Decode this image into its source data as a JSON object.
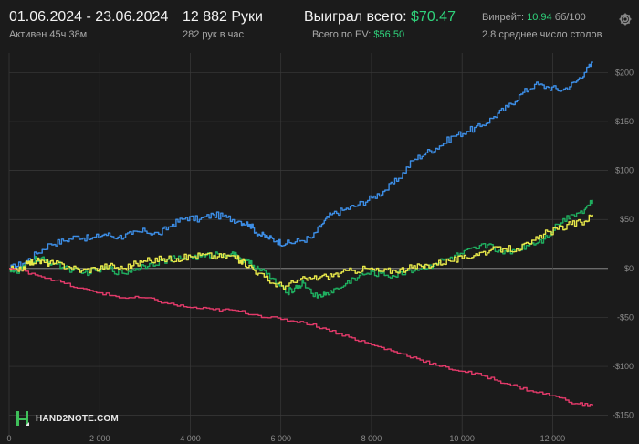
{
  "header": {
    "date_range": "01.06.2024 - 23.06.2024",
    "active_time": "Активен 45ч 38м",
    "hands": "12 882 Руки",
    "hands_per_hour": "282 рук в час",
    "won_label": "Выиграл всего:",
    "won_value": "$70.47",
    "ev_label": "Всего по EV:",
    "ev_value": "$56.50",
    "winrate_label": "Винрейт:",
    "winrate_value": "10.94",
    "winrate_unit": "бб/100",
    "avg_tables": "2.8 среднее число столов"
  },
  "icons": {
    "settings": "gear-icon",
    "logo": "hand2note-logo"
  },
  "logo": {
    "text": "HAND2NOTE.COM"
  },
  "colors": {
    "background": "#1b1b1b",
    "won": "#2fd27b",
    "total_line": "#3d8ee6",
    "net_won_line": "#1fae5f",
    "ev_line": "#e8e84a",
    "showdown_line": "#e33a6a",
    "grid": "#3a3a3a"
  },
  "chart_data": {
    "type": "line",
    "x_ticks": [
      0,
      2000,
      4000,
      6000,
      8000,
      10000,
      12000
    ],
    "x_tick_labels": [
      "0",
      "2 000",
      "4 000",
      "6 000",
      "8 000",
      "10 000",
      "12 000"
    ],
    "y_ticks": [
      -150,
      -100,
      -50,
      0,
      50,
      100,
      150,
      200
    ],
    "y_tick_labels": [
      "-$150",
      "-$100",
      "-$50",
      "$0",
      "$50",
      "$100",
      "$150",
      "$200"
    ],
    "xlim": [
      0,
      13100
    ],
    "ylim": [
      -155,
      220
    ],
    "grid": true,
    "series": [
      {
        "color": "#3d8ee6",
        "x": [
          0,
          300,
          600,
          900,
          1200,
          1500,
          1800,
          2100,
          2400,
          2700,
          3000,
          3300,
          3600,
          3900,
          4200,
          4500,
          4800,
          5100,
          5300,
          5500,
          5700,
          5900,
          6100,
          6400,
          6700,
          6900,
          7100,
          7400,
          7700,
          8000,
          8300,
          8600,
          8900,
          9200,
          9500,
          9800,
          10100,
          10400,
          10700,
          11000,
          11300,
          11600,
          11900,
          12200,
          12500,
          12700,
          12880
        ],
        "y": [
          0,
          5,
          15,
          25,
          28,
          33,
          30,
          35,
          32,
          35,
          38,
          35,
          45,
          52,
          50,
          55,
          52,
          48,
          45,
          35,
          32,
          28,
          25,
          28,
          32,
          45,
          55,
          60,
          65,
          72,
          80,
          92,
          110,
          118,
          125,
          135,
          140,
          145,
          155,
          165,
          178,
          188,
          185,
          182,
          190,
          200,
          210
        ]
      },
      {
        "color": "#1fae5f",
        "x": [
          0,
          200,
          400,
          600,
          800,
          1000,
          1300,
          1600,
          1900,
          2200,
          2500,
          2800,
          3100,
          3400,
          3700,
          4000,
          4300,
          4600,
          4900,
          5100,
          5300,
          5500,
          5800,
          6100,
          6300,
          6500,
          6800,
          7000,
          7300,
          7600,
          7900,
          8200,
          8500,
          8800,
          9100,
          9400,
          9700,
          10000,
          10300,
          10600,
          10900,
          11200,
          11500,
          11800,
          12100,
          12400,
          12700,
          12880
        ],
        "y": [
          0,
          -5,
          5,
          10,
          8,
          5,
          0,
          -5,
          -2,
          0,
          -5,
          0,
          5,
          8,
          10,
          12,
          12,
          15,
          15,
          10,
          5,
          0,
          -10,
          -25,
          -20,
          -15,
          -30,
          -25,
          -20,
          -10,
          -5,
          -5,
          -8,
          -2,
          0,
          5,
          10,
          15,
          20,
          25,
          15,
          20,
          25,
          30,
          45,
          55,
          60,
          70
        ]
      },
      {
        "color": "#e8e84a",
        "x": [
          0,
          200,
          400,
          600,
          800,
          1000,
          1300,
          1600,
          1900,
          2200,
          2500,
          2800,
          3100,
          3400,
          3700,
          4000,
          4300,
          4600,
          4900,
          5100,
          5300,
          5500,
          5800,
          6100,
          6400,
          6700,
          7000,
          7300,
          7600,
          7900,
          8200,
          8500,
          8800,
          9100,
          9400,
          9700,
          10000,
          10300,
          10600,
          10900,
          11200,
          11500,
          11800,
          12100,
          12400,
          12700,
          12880
        ],
        "y": [
          0,
          -3,
          5,
          8,
          6,
          5,
          2,
          -2,
          0,
          3,
          0,
          5,
          8,
          10,
          10,
          12,
          14,
          12,
          13,
          8,
          3,
          -5,
          -15,
          -18,
          -12,
          -10,
          -8,
          -5,
          -2,
          0,
          -3,
          -2,
          0,
          2,
          5,
          8,
          10,
          15,
          18,
          20,
          20,
          25,
          35,
          40,
          45,
          48,
          55
        ]
      },
      {
        "color": "#e33a6a",
        "x": [
          0,
          500,
          1000,
          1500,
          2000,
          2500,
          3000,
          3500,
          4000,
          4500,
          5000,
          5500,
          6000,
          6500,
          7000,
          7500,
          8000,
          8500,
          9000,
          9500,
          10000,
          10500,
          11000,
          11500,
          12000,
          12500,
          12880
        ],
        "y": [
          0,
          -5,
          -12,
          -20,
          -25,
          -30,
          -30,
          -36,
          -40,
          -42,
          -43,
          -48,
          -52,
          -55,
          -62,
          -70,
          -78,
          -85,
          -92,
          -100,
          -105,
          -110,
          -118,
          -125,
          -130,
          -138,
          -140
        ]
      }
    ]
  }
}
